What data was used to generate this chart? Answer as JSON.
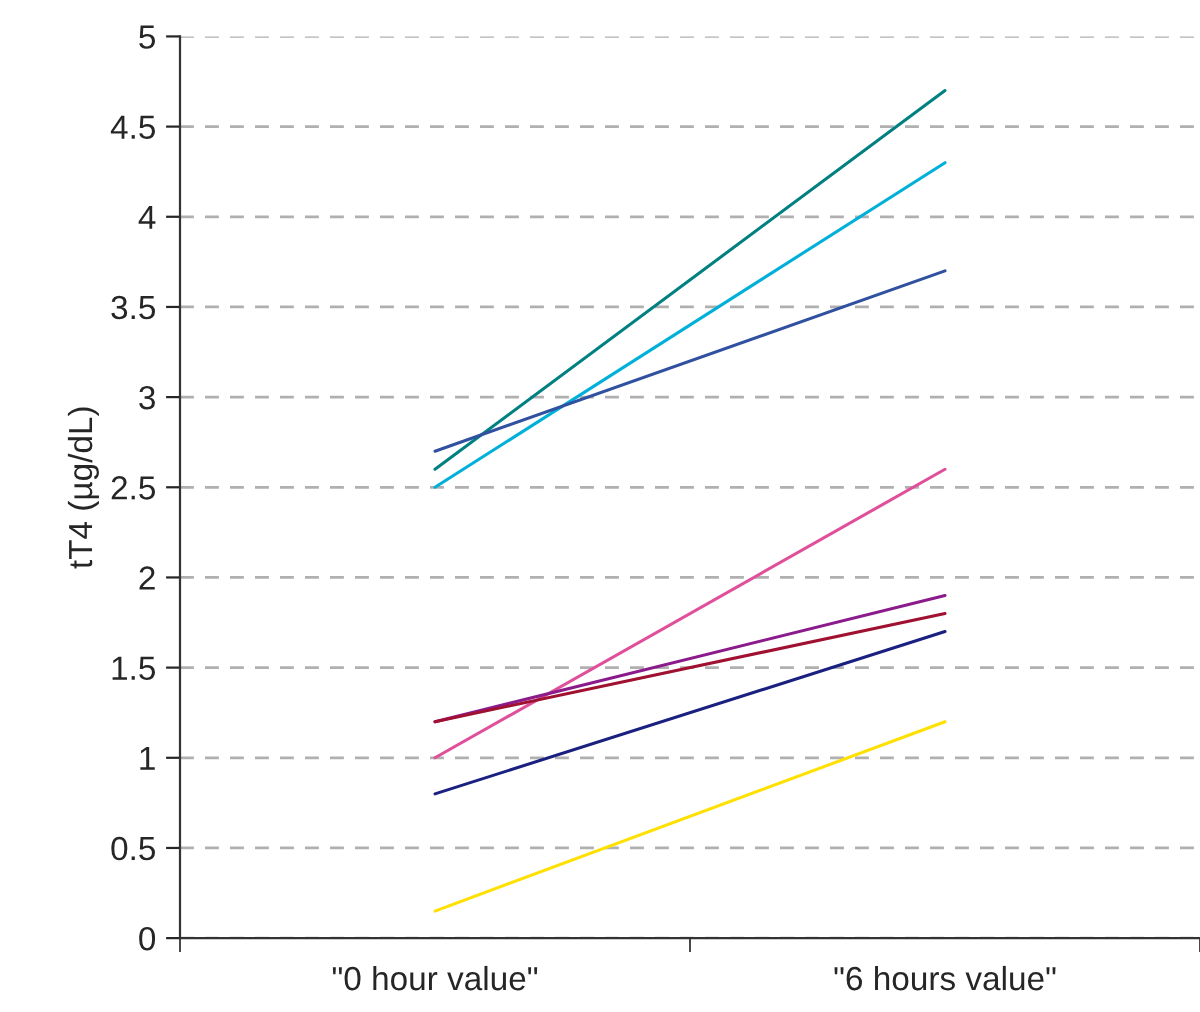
{
  "chart_data": {
    "type": "line",
    "ylabel": "tT4 (µg/dL)",
    "categories": [
      "\"0 hour value\"",
      "\"6 hours value\""
    ],
    "series": [
      {
        "color": "#008080",
        "values": [
          2.6,
          4.7
        ]
      },
      {
        "color": "#00b0d8",
        "values": [
          2.5,
          4.3
        ]
      },
      {
        "color": "#3050a0",
        "values": [
          2.7,
          3.7
        ]
      },
      {
        "color": "#e0509a",
        "values": [
          1.0,
          2.6
        ]
      },
      {
        "color": "#8b1a8b",
        "values": [
          1.2,
          1.9
        ]
      },
      {
        "color": "#a01030",
        "values": [
          1.2,
          1.8
        ]
      },
      {
        "color": "#1a2080",
        "values": [
          0.8,
          1.7
        ]
      },
      {
        "color": "#ffe000",
        "values": [
          0.15,
          1.2
        ]
      }
    ],
    "ylim": [
      0,
      5
    ],
    "yticks": [
      0,
      0.5,
      1,
      1.5,
      2,
      2.5,
      3,
      3.5,
      4,
      4.5,
      5
    ],
    "grid": "y",
    "legend": false,
    "marker": "none",
    "line_style": "solid"
  }
}
